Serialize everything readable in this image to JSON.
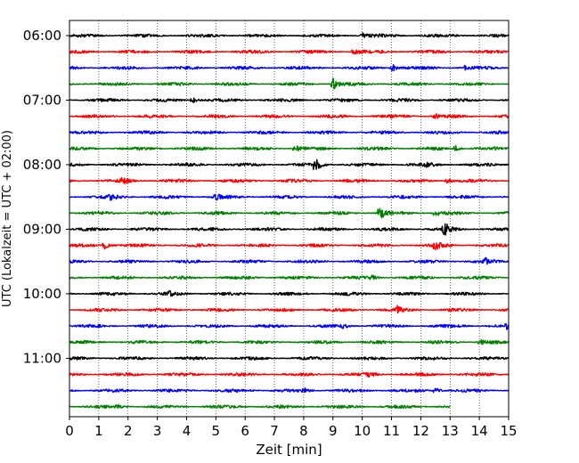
{
  "chart_data": {
    "type": "line",
    "xlabel": "Zeit  [min]",
    "ylabel": "UTC (Lokalzeit = UTC + 02:00)",
    "xlim": [
      0,
      15
    ],
    "x_ticks": [
      "0",
      "1",
      "2",
      "3",
      "4",
      "5",
      "6",
      "7",
      "8",
      "9",
      "10",
      "11",
      "12",
      "13",
      "14",
      "15"
    ],
    "y_ticks": [
      {
        "label": "06:00",
        "row": 0
      },
      {
        "label": "07:00",
        "row": 4
      },
      {
        "label": "08:00",
        "row": 8
      },
      {
        "label": "09:00",
        "row": 12
      },
      {
        "label": "10:00",
        "row": 16
      },
      {
        "label": "11:00",
        "row": 20
      }
    ],
    "grid_x": true,
    "color_cycle": [
      "#000000",
      "#ff0000",
      "#0000ff",
      "#008000"
    ],
    "rows_per_hour": 4,
    "minutes_per_row": 15,
    "trace_count": 24,
    "last_trace_end_min": 13,
    "events": [
      {
        "row": 0,
        "t": 10.0,
        "amp": 0.3
      },
      {
        "row": 1,
        "t": 9.7,
        "amp": 0.35
      },
      {
        "row": 2,
        "t": 11.0,
        "amp": 0.6
      },
      {
        "row": 2,
        "t": 13.5,
        "amp": 0.25
      },
      {
        "row": 3,
        "t": 9.0,
        "amp": 0.7
      },
      {
        "row": 4,
        "t": 4.2,
        "amp": 0.35
      },
      {
        "row": 5,
        "t": 12.5,
        "amp": 0.3
      },
      {
        "row": 7,
        "t": 7.7,
        "amp": 0.4
      },
      {
        "row": 7,
        "t": 13.2,
        "amp": 0.35
      },
      {
        "row": 8,
        "t": 8.4,
        "amp": 0.9
      },
      {
        "row": 8,
        "t": 12.2,
        "amp": 0.25
      },
      {
        "row": 9,
        "t": 1.8,
        "amp": 0.45
      },
      {
        "row": 9,
        "t": 12.9,
        "amp": 0.3
      },
      {
        "row": 10,
        "t": 1.4,
        "amp": 0.4
      },
      {
        "row": 10,
        "t": 5.0,
        "amp": 0.35
      },
      {
        "row": 11,
        "t": 10.6,
        "amp": 0.8
      },
      {
        "row": 11,
        "t": 12.5,
        "amp": 0.45
      },
      {
        "row": 12,
        "t": 12.8,
        "amp": 0.9
      },
      {
        "row": 13,
        "t": 1.2,
        "amp": 0.45
      },
      {
        "row": 13,
        "t": 12.5,
        "amp": 0.5
      },
      {
        "row": 14,
        "t": 14.2,
        "amp": 0.45
      },
      {
        "row": 15,
        "t": 10.3,
        "amp": 0.3
      },
      {
        "row": 16,
        "t": 3.4,
        "amp": 0.25
      },
      {
        "row": 17,
        "t": 11.2,
        "amp": 0.35
      },
      {
        "row": 18,
        "t": 9.3,
        "amp": 0.3
      },
      {
        "row": 18,
        "t": 14.9,
        "amp": 0.35
      },
      {
        "row": 19,
        "t": 14.0,
        "amp": 0.35
      },
      {
        "row": 21,
        "t": 10.2,
        "amp": 0.35
      },
      {
        "row": 22,
        "t": 8.0,
        "amp": 0.3
      },
      {
        "row": 22,
        "t": 12.5,
        "amp": 0.35
      },
      {
        "row": 23,
        "t": 1.6,
        "amp": 0.25
      }
    ]
  }
}
